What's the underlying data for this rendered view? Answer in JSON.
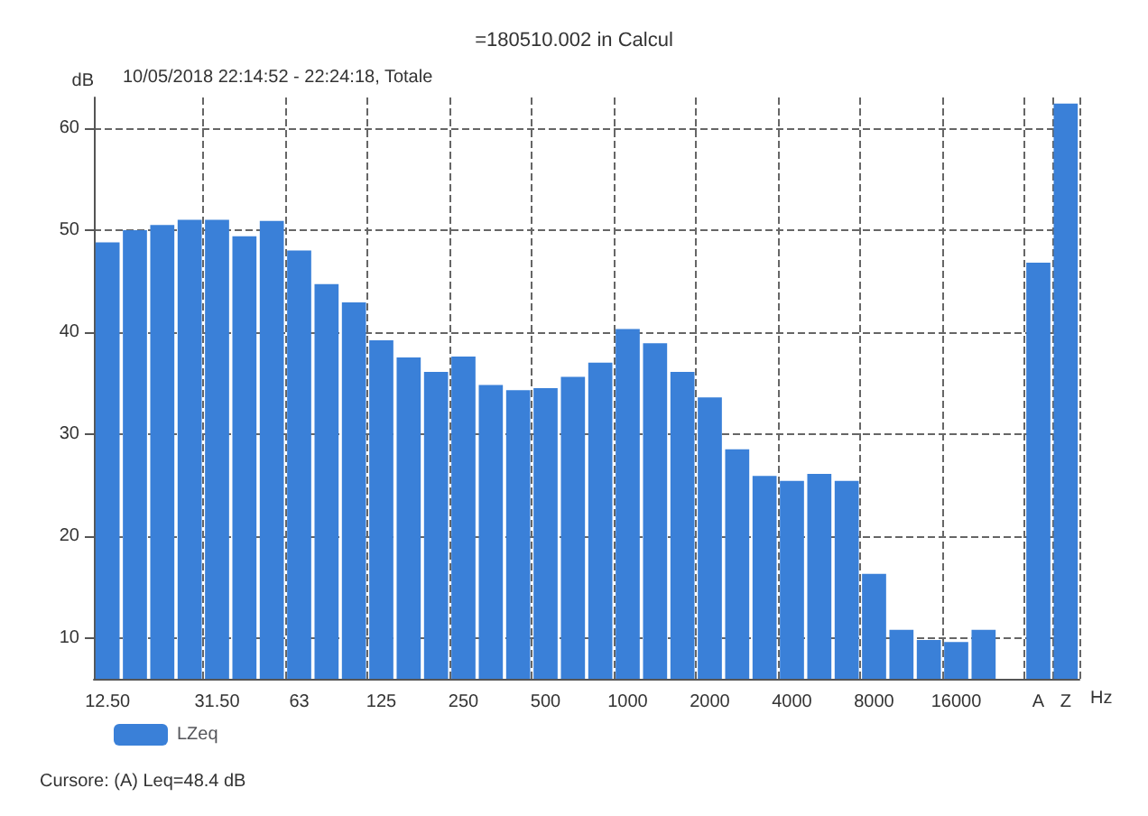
{
  "chart_data": {
    "type": "bar",
    "title": "=180510.002 in Calcul",
    "subtitle": "10/05/2018 22:14:52 - 22:24:18, Totale",
    "ylabel": "dB",
    "xlabel": "Hz",
    "categories": [
      "12.50",
      null,
      null,
      null,
      "31.50",
      null,
      null,
      "63",
      null,
      null,
      "125",
      null,
      null,
      "250",
      null,
      null,
      "500",
      null,
      null,
      "1000",
      null,
      null,
      "2000",
      null,
      null,
      "4000",
      null,
      null,
      "8000",
      null,
      null,
      "16000",
      null,
      null,
      "A",
      "Z"
    ],
    "series": [
      {
        "name": "LZeq",
        "color": "#3a80d8",
        "values": [
          48.8,
          50.0,
          50.5,
          51.0,
          51.0,
          49.4,
          50.9,
          48.0,
          44.7,
          42.9,
          39.2,
          37.5,
          36.1,
          37.6,
          34.8,
          34.3,
          34.5,
          35.6,
          37.0,
          40.3,
          38.9,
          36.1,
          33.6,
          28.5,
          25.9,
          25.4,
          26.1,
          25.4,
          16.3,
          10.8,
          9.8,
          9.6,
          10.8,
          null,
          46.8,
          62.4
        ]
      }
    ],
    "ylim": [
      6,
      63
    ],
    "yticks": [
      10,
      20,
      30,
      40,
      50,
      60
    ],
    "grid": true,
    "legend": "bottom left",
    "annotations": [
      "Cursore: (A) Leq=48.4 dB"
    ]
  }
}
